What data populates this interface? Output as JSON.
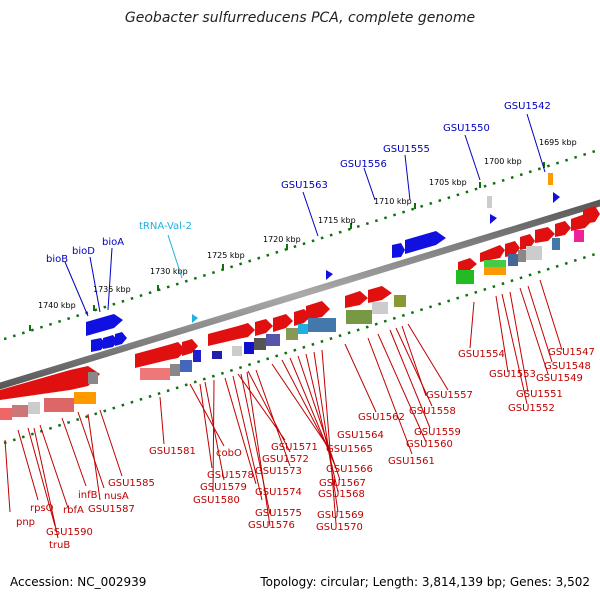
{
  "title": "Geobacter sulfurreducens PCA, complete genome",
  "footer": {
    "accession": "Accession: NC_002939",
    "summary": "Topology: circular; Length: 3,814,139 bp; Genes: 3,502"
  },
  "kbp_ticks": [
    "1695 kbp",
    "1700 kbp",
    "1705 kbp",
    "1710 kbp",
    "1715 kbp",
    "1720 kbp",
    "1725 kbp",
    "1730 kbp",
    "1735 kbp",
    "1740 kbp"
  ],
  "upper_labels": [
    "bioB",
    "bioD",
    "bioA",
    "tRNA-Val-2",
    "GSU1563",
    "GSU1556",
    "GSU1555",
    "GSU1550",
    "GSU1542"
  ],
  "lower_labels": [
    "pnp",
    "rpsO",
    "GSU1590",
    "truB",
    "rbfA",
    "infB",
    "nusA",
    "GSU1587",
    "GSU1585",
    "GSU1581",
    "cobO",
    "GSU1578",
    "GSU1579",
    "GSU1580",
    "GSU1571",
    "GSU1572",
    "GSU1573",
    "GSU1574",
    "GSU1575",
    "GSU1576",
    "GSU1564",
    "GSU1565",
    "GSU1566",
    "GSU1567",
    "GSU1568",
    "GSU1569",
    "GSU1570",
    "GSU1562",
    "GSU1558",
    "GSU1557",
    "GSU1559",
    "GSU1560",
    "GSU1561",
    "GSU1554",
    "GSU1553",
    "GSU1551",
    "GSU1552",
    "GSU1547",
    "GSU1548",
    "GSU1549"
  ],
  "colors": {
    "backbone": "#777777",
    "plus_strand": "#1010e0",
    "minus_strand": "#e01010",
    "tick": "#107010",
    "label_blue": "#0000c0",
    "label_cyan": "#20b0e0",
    "label_red": "#c00000"
  }
}
